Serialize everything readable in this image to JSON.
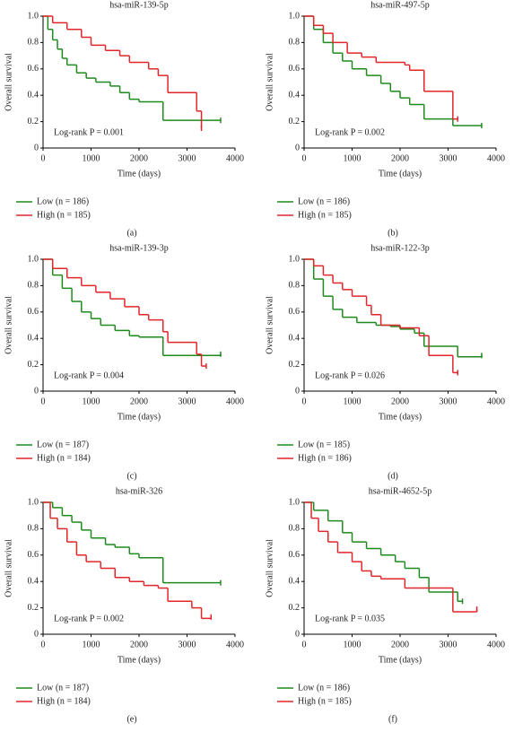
{
  "chart_data": [
    {
      "type": "line",
      "title": "hsa-miR-139-5p",
      "xlabel": "Time (days)",
      "ylabel": "Overall survival",
      "annotation": "Log-rank P = 0.001",
      "panel_label": "(a)",
      "xlim": [
        0,
        4000
      ],
      "ylim": [
        0,
        1
      ],
      "xticks": [
        0,
        1000,
        2000,
        3000,
        4000
      ],
      "yticks": [
        0,
        0.2,
        0.4,
        0.6,
        0.8,
        {
          "value": 1,
          "label": "1.0"
        }
      ],
      "series": [
        {
          "name": "Low (n = 186)",
          "color": "#1e8a1e",
          "x": [
            0,
            100,
            200,
            300,
            400,
            500,
            700,
            900,
            1100,
            1400,
            1600,
            1800,
            2000,
            2500,
            3700
          ],
          "values": [
            1,
            0.9,
            0.82,
            0.75,
            0.68,
            0.63,
            0.57,
            0.53,
            0.5,
            0.47,
            0.42,
            0.37,
            0.35,
            0.21,
            0.21
          ]
        },
        {
          "name": "High (n = 185)",
          "color": "#e0262a",
          "x": [
            0,
            200,
            500,
            800,
            1000,
            1300,
            1600,
            1800,
            2200,
            2400,
            2600,
            3200,
            3300
          ],
          "values": [
            1,
            0.95,
            0.9,
            0.84,
            0.78,
            0.74,
            0.7,
            0.65,
            0.6,
            0.55,
            0.42,
            0.28,
            0.15
          ]
        }
      ]
    },
    {
      "type": "line",
      "title": "hsa-miR-497-5p",
      "xlabel": "Time (days)",
      "ylabel": "Overall survival",
      "annotation": "Log-rank P = 0.002",
      "panel_label": "(b)",
      "xlim": [
        0,
        4000
      ],
      "ylim": [
        0,
        1
      ],
      "xticks": [
        0,
        1000,
        2000,
        3000,
        4000
      ],
      "yticks": [
        0,
        0.2,
        0.4,
        0.6,
        0.8,
        {
          "value": 1,
          "label": "1.0"
        }
      ],
      "series": [
        {
          "name": "Low (n = 186)",
          "color": "#1e8a1e",
          "x": [
            0,
            200,
            400,
            600,
            800,
            1000,
            1300,
            1600,
            1800,
            2000,
            2200,
            2500,
            3100,
            3700
          ],
          "values": [
            1,
            0.9,
            0.8,
            0.72,
            0.66,
            0.6,
            0.55,
            0.49,
            0.43,
            0.38,
            0.33,
            0.22,
            0.17,
            0.17
          ]
        },
        {
          "name": "High (n = 185)",
          "color": "#e0262a",
          "x": [
            0,
            200,
            400,
            600,
            900,
            1200,
            1500,
            2100,
            2200,
            2500,
            3100,
            3200
          ],
          "values": [
            1,
            0.93,
            0.87,
            0.8,
            0.72,
            0.69,
            0.65,
            0.63,
            0.59,
            0.43,
            0.22,
            0.22
          ]
        }
      ]
    },
    {
      "type": "line",
      "title": "hsa-miR-139-3p",
      "xlabel": "Time (days)",
      "ylabel": "Overall survival",
      "annotation": "Log-rank P = 0.004",
      "panel_label": "(c)",
      "xlim": [
        0,
        4000
      ],
      "ylim": [
        0,
        1
      ],
      "xticks": [
        0,
        1000,
        2000,
        3000,
        4000
      ],
      "yticks": [
        0,
        0.2,
        0.4,
        0.6,
        0.8,
        {
          "value": 1,
          "label": "1.0"
        }
      ],
      "series": [
        {
          "name": "Low (n = 187)",
          "color": "#1e8a1e",
          "x": [
            0,
            200,
            400,
            600,
            800,
            1000,
            1200,
            1500,
            1800,
            2000,
            2500,
            3700
          ],
          "values": [
            1,
            0.88,
            0.78,
            0.68,
            0.6,
            0.55,
            0.5,
            0.46,
            0.42,
            0.41,
            0.27,
            0.28
          ]
        },
        {
          "name": "High (n = 184)",
          "color": "#e0262a",
          "x": [
            0,
            200,
            500,
            800,
            1100,
            1400,
            1700,
            2000,
            2200,
            2500,
            2600,
            3200,
            3300,
            3400
          ],
          "values": [
            1,
            0.93,
            0.86,
            0.8,
            0.75,
            0.7,
            0.64,
            0.58,
            0.54,
            0.45,
            0.37,
            0.28,
            0.19,
            0.19
          ]
        }
      ]
    },
    {
      "type": "line",
      "title": "hsa-miR-122-3p",
      "xlabel": "Time (days)",
      "ylabel": "Overall survival",
      "annotation": "Log-rank P = 0.026",
      "panel_label": "(d)",
      "xlim": [
        0,
        4000
      ],
      "ylim": [
        0,
        1
      ],
      "xticks": [
        0,
        1000,
        2000,
        3000,
        4000
      ],
      "yticks": [
        0,
        0.2,
        0.4,
        0.6,
        0.8,
        {
          "value": 1,
          "label": "1.0"
        }
      ],
      "series": [
        {
          "name": "Low (n = 185)",
          "color": "#1e8a1e",
          "x": [
            0,
            200,
            400,
            600,
            800,
            1100,
            1500,
            1800,
            2000,
            2300,
            2500,
            3200,
            3700
          ],
          "values": [
            1,
            0.85,
            0.72,
            0.62,
            0.56,
            0.52,
            0.5,
            0.49,
            0.47,
            0.44,
            0.34,
            0.26,
            0.27
          ]
        },
        {
          "name": "High (n = 186)",
          "color": "#e0262a",
          "x": [
            0,
            200,
            400,
            600,
            800,
            1000,
            1300,
            1400,
            1600,
            2000,
            2400,
            2600,
            3100,
            3200
          ],
          "values": [
            1,
            0.95,
            0.88,
            0.82,
            0.77,
            0.72,
            0.65,
            0.58,
            0.5,
            0.48,
            0.42,
            0.27,
            0.14,
            0.14
          ]
        }
      ]
    },
    {
      "type": "line",
      "title": "hsa-miR-326",
      "xlabel": "Time (days)",
      "ylabel": "Overall survival",
      "annotation": "Log-rank P = 0.002",
      "panel_label": "(e)",
      "xlim": [
        0,
        4000
      ],
      "ylim": [
        0,
        1
      ],
      "xticks": [
        0,
        1000,
        2000,
        3000,
        4000
      ],
      "yticks": [
        0,
        0.2,
        0.4,
        0.6,
        0.8,
        {
          "value": 1,
          "label": "1.0"
        }
      ],
      "series": [
        {
          "name": "Low (n = 187)",
          "color": "#1e8a1e",
          "x": [
            0,
            200,
            400,
            600,
            800,
            1000,
            1300,
            1500,
            1800,
            2000,
            2500,
            3700
          ],
          "values": [
            1,
            0.96,
            0.9,
            0.85,
            0.79,
            0.73,
            0.68,
            0.66,
            0.61,
            0.58,
            0.39,
            0.39
          ]
        },
        {
          "name": "High (n = 184)",
          "color": "#e0262a",
          "x": [
            0,
            150,
            300,
            500,
            700,
            900,
            1200,
            1500,
            1800,
            2100,
            2400,
            2600,
            3100,
            3300,
            3500
          ],
          "values": [
            1,
            0.88,
            0.8,
            0.7,
            0.6,
            0.55,
            0.5,
            0.43,
            0.4,
            0.37,
            0.35,
            0.25,
            0.2,
            0.12,
            0.13
          ]
        }
      ]
    },
    {
      "type": "line",
      "title": "hsa-miR-4652-5p",
      "xlabel": "Time (days)",
      "ylabel": "Overall survival",
      "annotation": "Log-rank P = 0.035",
      "panel_label": "(f)",
      "xlim": [
        0,
        4000
      ],
      "ylim": [
        0,
        1
      ],
      "xticks": [
        0,
        1000,
        2000,
        3000,
        4000
      ],
      "yticks": [
        0,
        0.2,
        0.4,
        0.6,
        0.8,
        {
          "value": 1,
          "label": "1.0"
        }
      ],
      "series": [
        {
          "name": "Low (n = 186)",
          "color": "#1e8a1e",
          "x": [
            0,
            200,
            500,
            800,
            1000,
            1300,
            1600,
            1900,
            2100,
            2400,
            2600,
            3200,
            3300
          ],
          "values": [
            1,
            0.94,
            0.86,
            0.77,
            0.7,
            0.65,
            0.6,
            0.55,
            0.5,
            0.43,
            0.32,
            0.25,
            0.25
          ]
        },
        {
          "name": "High (n = 185)",
          "color": "#e0262a",
          "x": [
            0,
            150,
            300,
            500,
            700,
            1000,
            1200,
            1400,
            1600,
            2100,
            3100,
            3600
          ],
          "values": [
            1,
            0.88,
            0.78,
            0.7,
            0.62,
            0.55,
            0.48,
            0.44,
            0.42,
            0.35,
            0.17,
            0.19
          ]
        }
      ]
    }
  ]
}
